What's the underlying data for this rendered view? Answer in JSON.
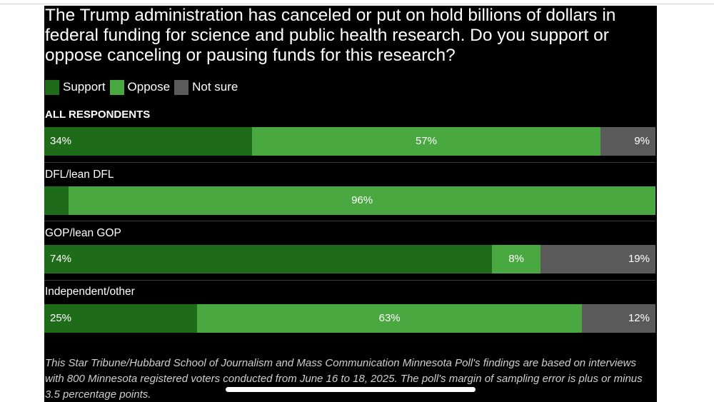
{
  "title": "The Trump administration has canceled or put on hold billions of dollars in federal funding for science and public health research. Do you support or oppose canceling or pausing funds for this research?",
  "legend": [
    {
      "label": "Support",
      "color": "#1e6b1a"
    },
    {
      "label": "Oppose",
      "color": "#4aa840"
    },
    {
      "label": "Not sure",
      "color": "#5a5a5a"
    }
  ],
  "footnote": "This Star Tribune/Hubbard School of Journalism and Mass Communication Minnesota Poll's findings are based on interviews with 800 Minnesota registered voters conducted from June 16 to 18, 2025. The poll's margin of sampling error is plus or minus 3.5 percentage points.",
  "chart_data": {
    "type": "bar",
    "orientation": "horizontal-stacked-100",
    "title": "The Trump administration has canceled or put on hold billions of dollars in federal funding for science and public health research. Do you support or oppose canceling or pausing funds for this research?",
    "categories": [
      "ALL RESPONDENTS",
      "DFL/lean DFL",
      "GOP/lean GOP",
      "Independent/other"
    ],
    "series": [
      {
        "name": "Support",
        "color": "#1e6b1a",
        "values": [
          34,
          4,
          74,
          25
        ],
        "labels": [
          "34%",
          "",
          "74%",
          "25%"
        ]
      },
      {
        "name": "Oppose",
        "color": "#4aa840",
        "values": [
          57,
          96,
          8,
          63
        ],
        "labels": [
          "57%",
          "96%",
          "8%",
          "63%"
        ]
      },
      {
        "name": "Not sure",
        "color": "#5a5a5a",
        "values": [
          9,
          0,
          19,
          12
        ],
        "labels": [
          "9%",
          "",
          "19%",
          "12%"
        ]
      }
    ],
    "xlim": [
      0,
      100
    ],
    "legend_position": "top-left",
    "grid": false
  }
}
